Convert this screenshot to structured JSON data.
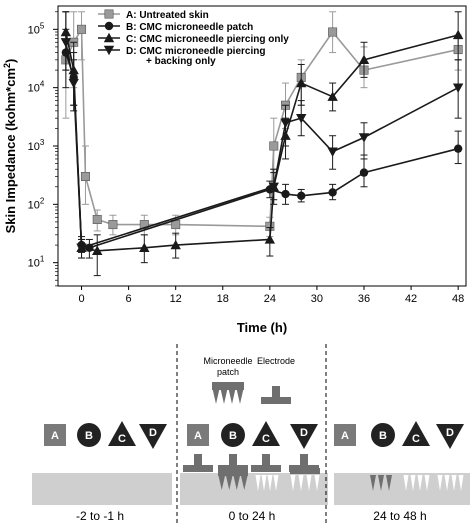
{
  "chart_data": {
    "type": "line",
    "title": "",
    "xlabel": "Time (h)",
    "ylabel_prefix": "Skin Impedance (kohm*cm",
    "ylabel_sup": "2",
    "ylabel_suffix": ")",
    "xlim": [
      -3,
      49
    ],
    "ylim_log10": [
      0.6,
      5.4
    ],
    "log_y": true,
    "grid": false,
    "legend_position": "top-left",
    "x_ticks": [
      0,
      6,
      12,
      18,
      24,
      30,
      36,
      42,
      48
    ],
    "y_ticks": [
      {
        "exp": 1,
        "base": "10",
        "sup": "1"
      },
      {
        "exp": 2,
        "base": "10",
        "sup": "2"
      },
      {
        "exp": 3,
        "base": "10",
        "sup": "3"
      },
      {
        "exp": 4,
        "base": "10",
        "sup": "4"
      },
      {
        "exp": 5,
        "base": "10",
        "sup": "5"
      }
    ],
    "series": [
      {
        "name": "A: Untreated skin",
        "marker": "square",
        "color": "#9a9a9a",
        "points": [
          {
            "x": -2,
            "y": 30000,
            "lo": 3000,
            "hi": 200000
          },
          {
            "x": -1,
            "y": 60000,
            "lo": 10000,
            "hi": 200000
          },
          {
            "x": 0,
            "y": 100000,
            "lo": 30000,
            "hi": 200000
          },
          {
            "x": 0.5,
            "y": 300,
            "lo": 100,
            "hi": 1000
          },
          {
            "x": 2,
            "y": 55,
            "lo": 35,
            "hi": 80
          },
          {
            "x": 4,
            "y": 45,
            "lo": 30,
            "hi": 65
          },
          {
            "x": 8,
            "y": 45,
            "lo": 30,
            "hi": 65
          },
          {
            "x": 12,
            "y": 45,
            "lo": 30,
            "hi": 65
          },
          {
            "x": 24,
            "y": 42,
            "lo": 28,
            "hi": 60
          },
          {
            "x": 24.5,
            "y": 1000,
            "lo": 400,
            "hi": 3000
          },
          {
            "x": 26,
            "y": 5000,
            "lo": 2000,
            "hi": 12000
          },
          {
            "x": 28,
            "y": 15000,
            "lo": 5000,
            "hi": 30000
          },
          {
            "x": 32,
            "y": 90000,
            "lo": 40000,
            "hi": 200000
          },
          {
            "x": 36,
            "y": 20000,
            "lo": 10000,
            "hi": 50000
          },
          {
            "x": 48,
            "y": 45000,
            "lo": 20000,
            "hi": 80000
          }
        ]
      },
      {
        "name": "B: CMC microneedle patch",
        "marker": "circle",
        "color": "#1a1a1a",
        "points": [
          {
            "x": -2,
            "y": 40000,
            "lo": 10000,
            "hi": 100000
          },
          {
            "x": -1,
            "y": 15000,
            "lo": 5000,
            "hi": 40000
          },
          {
            "x": 0,
            "y": 20,
            "lo": 15,
            "hi": 28
          },
          {
            "x": 1,
            "y": 18,
            "lo": 12,
            "hi": 25
          },
          {
            "x": 24,
            "y": 180,
            "lo": 130,
            "hi": 250
          },
          {
            "x": 26,
            "y": 150,
            "lo": 100,
            "hi": 220
          },
          {
            "x": 28,
            "y": 140,
            "lo": 110,
            "hi": 180
          },
          {
            "x": 32,
            "y": 160,
            "lo": 120,
            "hi": 220
          },
          {
            "x": 36,
            "y": 350,
            "lo": 200,
            "hi": 700
          },
          {
            "x": 48,
            "y": 900,
            "lo": 500,
            "hi": 1800
          }
        ]
      },
      {
        "name": "C: CMC microneedle piercing only",
        "marker": "triangle-up",
        "color": "#1a1a1a",
        "points": [
          {
            "x": -2,
            "y": 90000,
            "lo": 20000,
            "hi": 200000
          },
          {
            "x": -1,
            "y": 20000,
            "lo": 5000,
            "hi": 60000
          },
          {
            "x": 0,
            "y": 18,
            "lo": 12,
            "hi": 25
          },
          {
            "x": 2,
            "y": 16,
            "lo": 6,
            "hi": 30
          },
          {
            "x": 8,
            "y": 18,
            "lo": 10,
            "hi": 30
          },
          {
            "x": 12,
            "y": 20,
            "lo": 12,
            "hi": 32
          },
          {
            "x": 24,
            "y": 25,
            "lo": 13,
            "hi": 40
          },
          {
            "x": 24.5,
            "y": 200,
            "lo": 120,
            "hi": 400
          },
          {
            "x": 26,
            "y": 1500,
            "lo": 600,
            "hi": 3000
          },
          {
            "x": 28,
            "y": 12000,
            "lo": 5000,
            "hi": 25000
          },
          {
            "x": 32,
            "y": 7000,
            "lo": 4000,
            "hi": 12000
          },
          {
            "x": 36,
            "y": 30000,
            "lo": 15000,
            "hi": 60000
          },
          {
            "x": 48,
            "y": 80000,
            "lo": 30000,
            "hi": 200000
          }
        ]
      },
      {
        "name": "D: CMC microneedle piercing + backing only",
        "marker": "triangle-down",
        "color": "#1a1a1a",
        "points": [
          {
            "x": -2,
            "y": 60000,
            "lo": 20000,
            "hi": 200000
          },
          {
            "x": -1,
            "y": 12000,
            "lo": 4000,
            "hi": 30000
          },
          {
            "x": 0,
            "y": 18,
            "lo": 12,
            "hi": 25
          },
          {
            "x": 24.5,
            "y": 200,
            "lo": 100,
            "hi": 350
          },
          {
            "x": 26,
            "y": 2500,
            "lo": 1000,
            "hi": 5000
          },
          {
            "x": 28,
            "y": 3000,
            "lo": 1500,
            "hi": 6000
          },
          {
            "x": 32,
            "y": 800,
            "lo": 400,
            "hi": 1500
          },
          {
            "x": 36,
            "y": 1400,
            "lo": 600,
            "hi": 2500
          },
          {
            "x": 48,
            "y": 10000,
            "lo": 3000,
            "hi": 30000
          }
        ]
      }
    ],
    "legend": [
      {
        "line1": "A: Untreated skin",
        "line2": ""
      },
      {
        "line1": "B: CMC microneedle patch",
        "line2": ""
      },
      {
        "line1": "C: CMC microneedle piercing only",
        "line2": ""
      },
      {
        "line1": "D: CMC microneedle piercing",
        "line2": "+ backing only"
      }
    ]
  },
  "schematic": {
    "labels": {
      "microneedle_patch_line1": "Microneedle",
      "microneedle_patch_line2": "patch",
      "electrode": "Electrode"
    },
    "phases": [
      {
        "label": "-2  to -1 h",
        "groups": [
          "A",
          "B",
          "C",
          "D"
        ]
      },
      {
        "label": "0 to 24 h",
        "groups": [
          "A",
          "B",
          "C",
          "D"
        ]
      },
      {
        "label": "24 to 48 h",
        "groups": [
          "A",
          "B",
          "C",
          "D"
        ]
      }
    ],
    "colors": {
      "skin": "#cfcfcf",
      "device": "#6f6f6f",
      "symbol": "#222222",
      "square_symbol": "#7a7a7a"
    }
  }
}
